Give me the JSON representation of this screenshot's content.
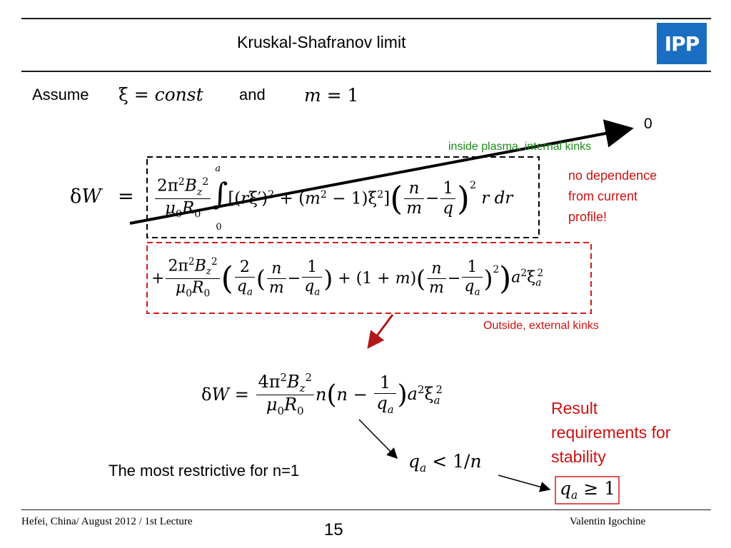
{
  "slide": {
    "title": "Kruskal-Shafranov limit",
    "logo_text": "IPP",
    "page_number": "15",
    "footer_left": "Hefei, China/ August 2012 / 1st Lecture",
    "footer_right": "Valentin Igochine"
  },
  "intro": {
    "assume": "Assume",
    "and": "and"
  },
  "annotations": {
    "zero": "0",
    "internal_kinks": "inside plasma, internal kinks",
    "no_dependence": [
      "no dependence",
      "from current",
      "profile!"
    ],
    "external_kinks": "Outside, external kinks",
    "result": [
      "Result",
      "requirements for",
      "stability"
    ],
    "most_restrictive": "The most restrictive for n=1"
  },
  "colors": {
    "green": "#1b8a1b",
    "red": "#cc1111",
    "logo_blue": "#1a6ec2",
    "dark_red_arrow": "#b01818"
  }
}
